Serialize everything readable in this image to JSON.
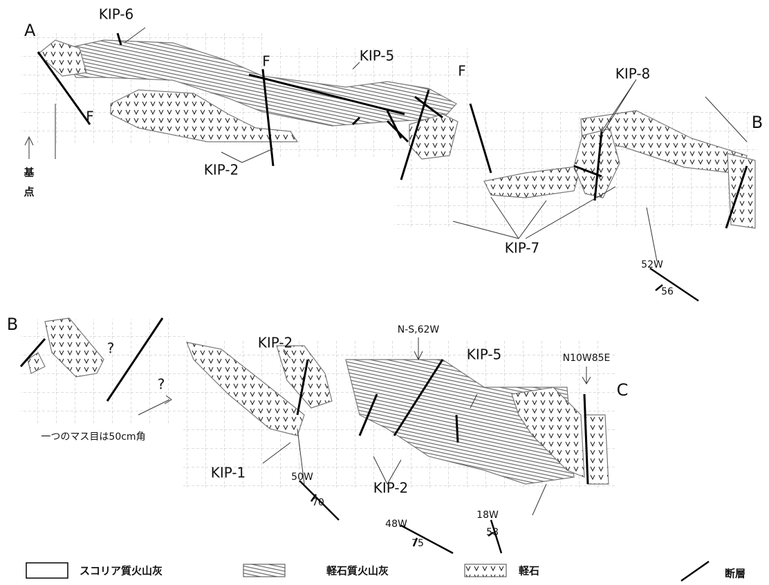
{
  "top_section": {
    "point_a": "A",
    "point_b": "B",
    "kip6": "KIP-6",
    "kip5": "KIP-5",
    "kip8": "KIP-8",
    "kip2": "KIP-2",
    "kip7": "KIP-7",
    "fault_labels": [
      "F",
      "F",
      "F"
    ],
    "base_point": [
      "基",
      "点"
    ],
    "strike": "52W",
    "dip": "56"
  },
  "bottom_section": {
    "point_b": "B",
    "point_c": "C",
    "unknowns": [
      "?",
      "?"
    ],
    "kip2_upper": "KIP-2",
    "kip5": "KIP-5",
    "kip1": "KIP-1",
    "kip2_lower": "KIP-2",
    "fault_notes": [
      "N-S,62W",
      "N10W85E"
    ],
    "grid_note": "一つのマス目は50cm角",
    "measurements": [
      {
        "strike": "50W",
        "dip": "70"
      },
      {
        "strike": "48W",
        "dip": "75"
      },
      {
        "strike": "18W",
        "dip": "58"
      }
    ]
  },
  "legend": [
    "スコリア質火山灰",
    "軽石質火山灰",
    "軽石",
    "断層"
  ]
}
